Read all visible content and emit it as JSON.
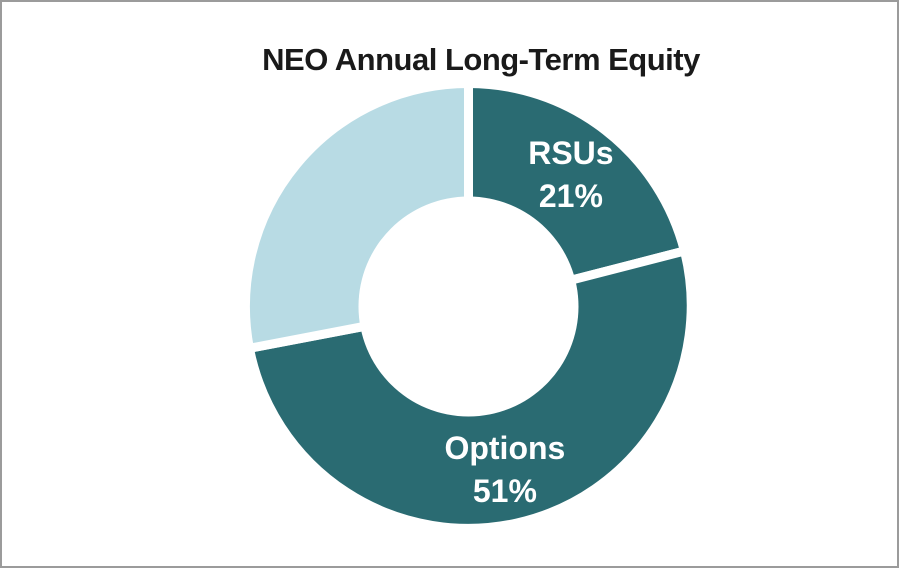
{
  "page": {
    "background_color": "#FFFFFF",
    "border_color": "#9B9B9B"
  },
  "chart_data": {
    "type": "pie",
    "subtype": "donut",
    "title": "NEO Annual Long-Term Equity",
    "title_color": "#1A1A1A",
    "slices": [
      {
        "name": "RSUs",
        "value": 21,
        "percent_label": "21%",
        "color": "#2A6B72",
        "label_shown": true
      },
      {
        "name": "Options",
        "value": 51,
        "percent_label": "51%",
        "color": "#2A6B72",
        "label_shown": true
      },
      {
        "name": "",
        "value": 28,
        "percent_label": "",
        "color": "#B8DBE4",
        "label_shown": false
      }
    ],
    "label_text_color": "#FFFFFF",
    "separator_color": "#FFFFFF",
    "start_angle_deg": 0,
    "direction": "clockwise",
    "hole_ratio": 0.5,
    "legend": "none",
    "grid": "off"
  }
}
